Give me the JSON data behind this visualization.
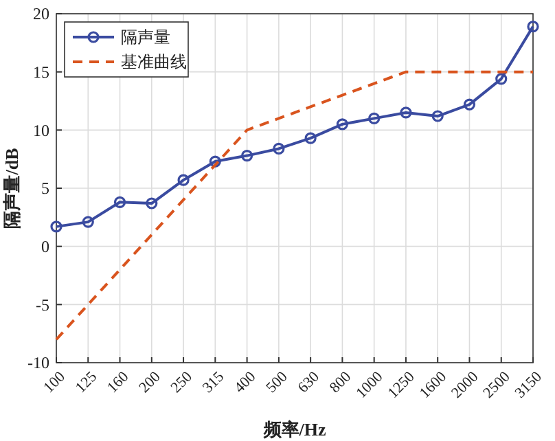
{
  "chart_data": {
    "type": "line",
    "xlabel": "频率/Hz",
    "ylabel": "隔声量/dB",
    "categories": [
      "100",
      "125",
      "160",
      "200",
      "250",
      "315",
      "400",
      "500",
      "630",
      "800",
      "1000",
      "1250",
      "1600",
      "2000",
      "2500",
      "3150"
    ],
    "series": [
      {
        "name": "隔声量",
        "color": "#3a4ba0",
        "marker": "circle",
        "line_style": "solid",
        "values": [
          1.7,
          2.1,
          3.8,
          3.7,
          5.7,
          7.3,
          7.8,
          8.4,
          9.3,
          10.5,
          11.0,
          11.5,
          11.2,
          12.2,
          14.4,
          18.9
        ]
      },
      {
        "name": "基准曲线",
        "color": "#d9541e",
        "marker": "none",
        "line_style": "dashed",
        "values": [
          -8,
          -5,
          -2,
          1,
          4,
          7,
          10,
          11,
          12,
          13,
          14,
          15,
          15,
          15,
          15,
          15
        ]
      }
    ],
    "ylim": [
      -10,
      20
    ],
    "yticks": [
      -10,
      -5,
      0,
      5,
      10,
      15,
      20
    ],
    "grid": true,
    "legend": "top left"
  }
}
